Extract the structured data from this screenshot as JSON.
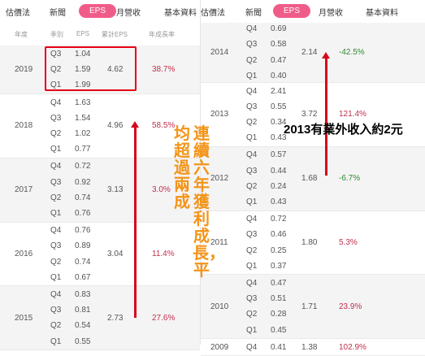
{
  "tabs": [
    {
      "label": "估價法",
      "active": false
    },
    {
      "label": "新聞",
      "active": false
    },
    {
      "label": "EPS",
      "active": true
    },
    {
      "label": "月營收",
      "active": false
    },
    {
      "label": "基本資料",
      "active": false
    }
  ],
  "table_headers": {
    "year": "年度",
    "quarter": "季別",
    "eps": "EPS",
    "cumulative_eps": "累計EPS",
    "annual_growth": "年成長率"
  },
  "left_table": [
    {
      "year": "2019",
      "rows": [
        {
          "q": "Q3",
          "eps": "1.04"
        },
        {
          "q": "Q2",
          "eps": "1.59"
        },
        {
          "q": "Q1",
          "eps": "1.99"
        }
      ],
      "cumulative_eps": "4.62",
      "growth": "38.7%",
      "growth_sign": "pos"
    },
    {
      "year": "2018",
      "rows": [
        {
          "q": "Q4",
          "eps": "1.63"
        },
        {
          "q": "Q3",
          "eps": "1.54"
        },
        {
          "q": "Q2",
          "eps": "1.02"
        },
        {
          "q": "Q1",
          "eps": "0.77"
        }
      ],
      "cumulative_eps": "4.96",
      "growth": "58.5%",
      "growth_sign": "pos"
    },
    {
      "year": "2017",
      "rows": [
        {
          "q": "Q4",
          "eps": "0.72"
        },
        {
          "q": "Q3",
          "eps": "0.92"
        },
        {
          "q": "Q2",
          "eps": "0.74"
        },
        {
          "q": "Q1",
          "eps": "0.76"
        }
      ],
      "cumulative_eps": "3.13",
      "growth": "3.0%",
      "growth_sign": "pos"
    },
    {
      "year": "2016",
      "rows": [
        {
          "q": "Q4",
          "eps": "0.76"
        },
        {
          "q": "Q3",
          "eps": "0.89"
        },
        {
          "q": "Q2",
          "eps": "0.74"
        },
        {
          "q": "Q1",
          "eps": "0.67"
        }
      ],
      "cumulative_eps": "3.04",
      "growth": "11.4%",
      "growth_sign": "pos"
    },
    {
      "year": "2015",
      "rows": [
        {
          "q": "Q4",
          "eps": "0.83"
        },
        {
          "q": "Q3",
          "eps": "0.81"
        },
        {
          "q": "Q2",
          "eps": "0.54"
        },
        {
          "q": "Q1",
          "eps": "0.55"
        }
      ],
      "cumulative_eps": "2.73",
      "growth": "27.6%",
      "growth_sign": "pos"
    }
  ],
  "right_table": [
    {
      "year": "2014",
      "rows": [
        {
          "q": "Q4",
          "eps": "0.69"
        },
        {
          "q": "Q3",
          "eps": "0.58"
        },
        {
          "q": "Q2",
          "eps": "0.47"
        },
        {
          "q": "Q1",
          "eps": "0.40"
        }
      ],
      "cumulative_eps": "2.14",
      "growth": "-42.5%",
      "growth_sign": "neg"
    },
    {
      "year": "2013",
      "rows": [
        {
          "q": "Q4",
          "eps": "2.41"
        },
        {
          "q": "Q3",
          "eps": "0.55"
        },
        {
          "q": "Q2",
          "eps": "0.34"
        },
        {
          "q": "Q1",
          "eps": "0.43"
        }
      ],
      "cumulative_eps": "3.72",
      "growth": "121.4%",
      "growth_sign": "pos"
    },
    {
      "year": "2012",
      "rows": [
        {
          "q": "Q4",
          "eps": "0.57"
        },
        {
          "q": "Q3",
          "eps": "0.44"
        },
        {
          "q": "Q2",
          "eps": "0.24"
        },
        {
          "q": "Q1",
          "eps": "0.43"
        }
      ],
      "cumulative_eps": "1.68",
      "growth": "-6.7%",
      "growth_sign": "neg"
    },
    {
      "year": "2011",
      "rows": [
        {
          "q": "Q4",
          "eps": "0.72"
        },
        {
          "q": "Q3",
          "eps": "0.46"
        },
        {
          "q": "Q2",
          "eps": "0.25"
        },
        {
          "q": "Q1",
          "eps": "0.37"
        }
      ],
      "cumulative_eps": "1.80",
      "growth": "5.3%",
      "growth_sign": "pos"
    },
    {
      "year": "2010",
      "rows": [
        {
          "q": "Q4",
          "eps": "0.47"
        },
        {
          "q": "Q3",
          "eps": "0.51"
        },
        {
          "q": "Q2",
          "eps": "0.28"
        },
        {
          "q": "Q1",
          "eps": "0.45"
        }
      ],
      "cumulative_eps": "1.71",
      "growth": "23.9%",
      "growth_sign": "pos"
    },
    {
      "year": "2009",
      "rows": [
        {
          "q": "Q4",
          "eps": "0.41"
        }
      ],
      "cumulative_eps": "1.38",
      "growth": "102.9%",
      "growth_sign": "pos"
    }
  ],
  "annotations": {
    "vertical_right": "連續六年獲利成長，平",
    "vertical_left": "均超過兩成",
    "note_2013": "2013有業外收入約2元"
  },
  "colors": {
    "active_tab": "#f05c8a",
    "highlight_box": "#e60012",
    "arrow": "#d3091b",
    "annotation_text": "#f39418",
    "growth_positive": "#c0304d",
    "growth_negative": "#2f8a2f"
  }
}
